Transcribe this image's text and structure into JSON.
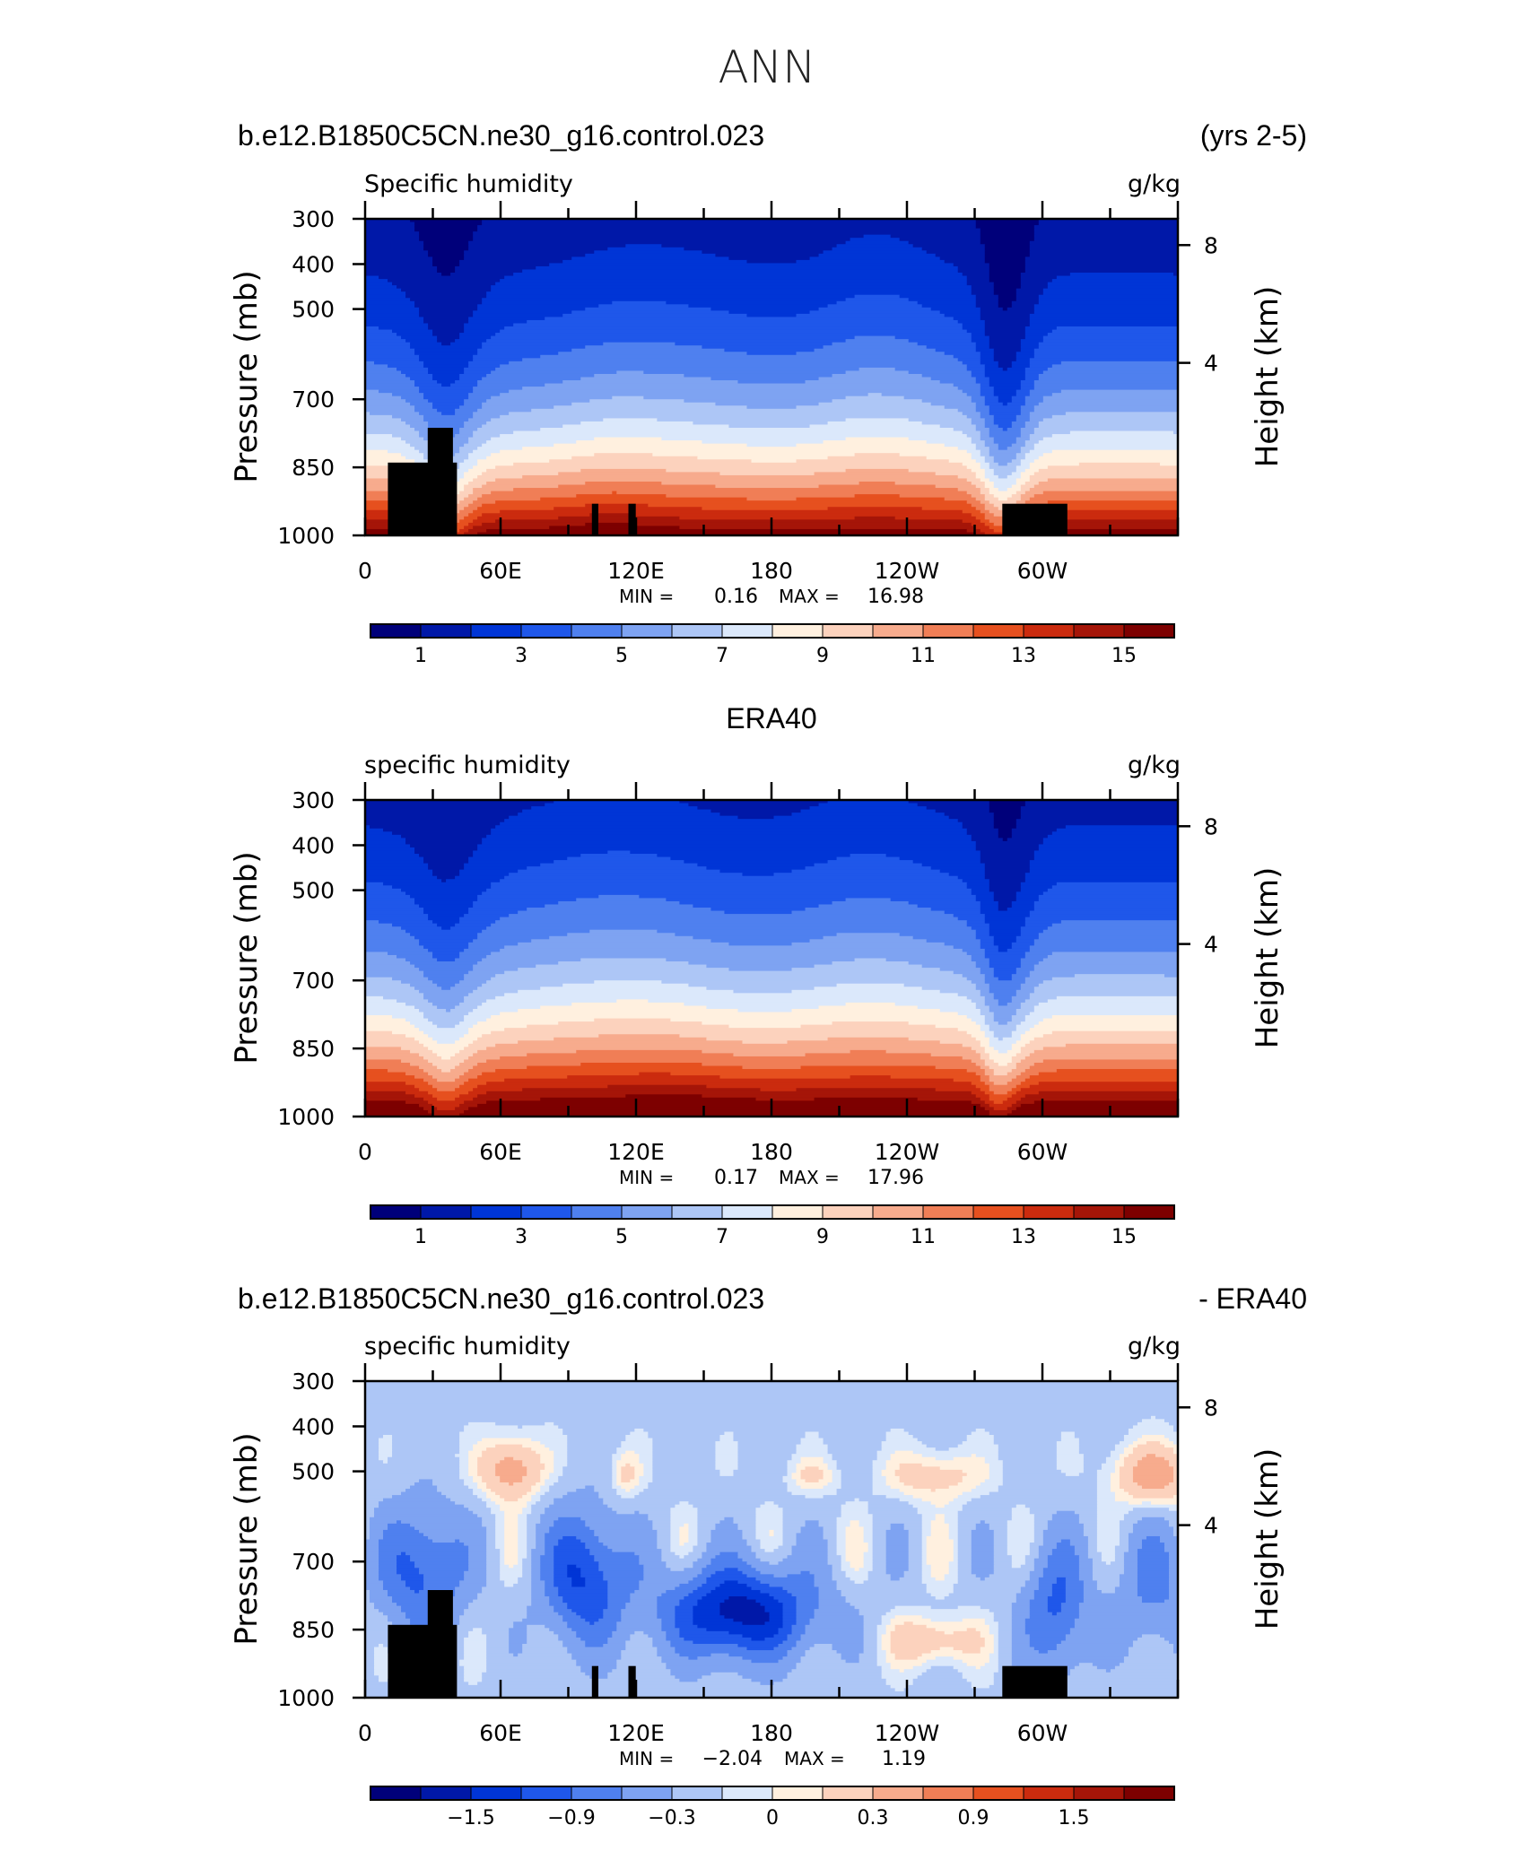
{
  "figure": {
    "title": "ANN"
  },
  "chart_data": [
    {
      "type": "heatmap",
      "header_left": "b.e12.B1850C5CN.ne30_g16.control.023",
      "header_right": "(yrs 2-5)",
      "header_center": "",
      "field_label": "Specific humidity",
      "units": "g/kg",
      "ylabel": "Pressure (mb)",
      "ylabel_right": "Height (km)",
      "y_ticks": [
        "300",
        "400",
        "500",
        "700",
        "850",
        "1000"
      ],
      "y_right_ticks": [
        "8",
        "4"
      ],
      "x_ticks": [
        "0",
        "60E",
        "120E",
        "180",
        "120W",
        "60W"
      ],
      "min_label": "MIN =",
      "min_value": "0.16",
      "max_label": "MAX =",
      "max_value": "16.98",
      "colorbar_labels": [
        "1",
        "3",
        "5",
        "7",
        "9",
        "11",
        "13",
        "15"
      ],
      "colors": [
        "#00007a",
        "#0018a8",
        "#0035d6",
        "#1f57ea",
        "#4f80ef",
        "#7ea3f2",
        "#adc6f6",
        "#dbe8fb",
        "#fff0df",
        "#fcd2bd",
        "#f7ab8d",
        "#f07e56",
        "#e6501f",
        "#cb2b0e",
        "#a51508",
        "#7d0000"
      ],
      "topography": true
    },
    {
      "type": "heatmap",
      "header_left": "",
      "header_right": "",
      "header_center": "ERA40",
      "field_label": "specific humidity",
      "units": "g/kg",
      "ylabel": "Pressure (mb)",
      "ylabel_right": "Height (km)",
      "y_ticks": [
        "300",
        "400",
        "500",
        "700",
        "850",
        "1000"
      ],
      "y_right_ticks": [
        "8",
        "4"
      ],
      "x_ticks": [
        "0",
        "60E",
        "120E",
        "180",
        "120W",
        "60W"
      ],
      "min_label": "MIN =",
      "min_value": "0.17",
      "max_label": "MAX =",
      "max_value": "17.96",
      "colorbar_labels": [
        "1",
        "3",
        "5",
        "7",
        "9",
        "11",
        "13",
        "15"
      ],
      "colors": [
        "#00007a",
        "#0018a8",
        "#0035d6",
        "#1f57ea",
        "#4f80ef",
        "#7ea3f2",
        "#adc6f6",
        "#dbe8fb",
        "#fff0df",
        "#fcd2bd",
        "#f7ab8d",
        "#f07e56",
        "#e6501f",
        "#cb2b0e",
        "#a51508",
        "#7d0000"
      ],
      "topography": false
    },
    {
      "type": "heatmap",
      "header_left": "b.e12.B1850C5CN.ne30_g16.control.023",
      "header_right": "- ERA40",
      "header_center": "",
      "field_label": "specific humidity",
      "units": "g/kg",
      "ylabel": "Pressure (mb)",
      "ylabel_right": "Height (km)",
      "y_ticks": [
        "300",
        "400",
        "500",
        "700",
        "850",
        "1000"
      ],
      "y_right_ticks": [
        "8",
        "4"
      ],
      "x_ticks": [
        "0",
        "60E",
        "120E",
        "180",
        "120W",
        "60W"
      ],
      "min_label": "MIN =",
      "min_value": "−2.04",
      "max_label": "MAX =",
      "max_value": "1.19",
      "colorbar_labels": [
        "−1.5",
        "−0.9",
        "−0.3",
        "0",
        "0.3",
        "0.9",
        "1.5"
      ],
      "colors": [
        "#00007a",
        "#0018a8",
        "#0035d6",
        "#1f57ea",
        "#4f80ef",
        "#7ea3f2",
        "#adc6f6",
        "#dbe8fb",
        "#fff0df",
        "#fcd2bd",
        "#f7ab8d",
        "#f07e56",
        "#e6501f",
        "#cb2b0e",
        "#a51508",
        "#7d0000"
      ],
      "topography": true
    }
  ]
}
